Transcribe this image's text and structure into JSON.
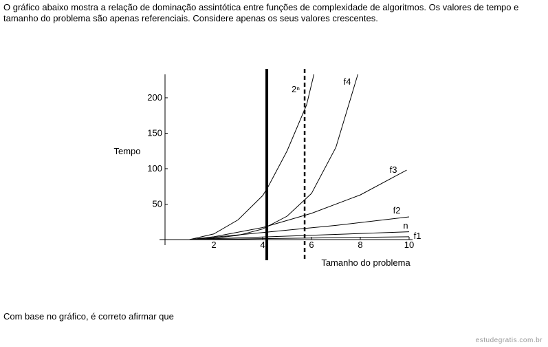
{
  "text": "O gráfico abaixo mostra a relação de dominação assintótica entre funções de complexidade de algoritmos. Os valores de tempo e tamanho do problema são apenas referenciais. Considere apenas os seus valores crescentes.",
  "chart_data": {
    "type": "line",
    "x_label": "Tamanho do problema",
    "y_label": "Tempo",
    "xlim": [
      0,
      10
    ],
    "ylim": [
      0,
      233
    ],
    "xticks": [
      2,
      4,
      6,
      8,
      10
    ],
    "yticks": [
      50,
      100,
      150,
      200
    ],
    "series": [
      {
        "name": "2ⁿ",
        "color": "#000000",
        "x": [
          1,
          2,
          3,
          4,
          4.2,
          5,
          5.8,
          6.1
        ],
        "values": [
          0,
          8,
          28,
          62,
          73,
          125,
          190,
          233
        ]
      },
      {
        "name": "f4",
        "color": "#000000",
        "x": [
          1,
          2,
          3,
          4,
          5,
          6,
          7,
          7.9
        ],
        "values": [
          0,
          2,
          6,
          15,
          33,
          65,
          130,
          233
        ]
      },
      {
        "name": "f3",
        "color": "#000000",
        "x": [
          1,
          2,
          4,
          6,
          8,
          9.9
        ],
        "values": [
          0,
          4,
          17,
          37,
          63,
          98
        ]
      },
      {
        "name": "f2",
        "color": "#000000",
        "x": [
          1,
          4,
          7,
          10
        ],
        "values": [
          0,
          10,
          20,
          32
        ]
      },
      {
        "name": "n",
        "color": "#000000",
        "x": [
          1,
          10
        ],
        "values": [
          0,
          11
        ]
      },
      {
        "name": "f1",
        "color": "#000000",
        "x": [
          1,
          10
        ],
        "values": [
          0,
          4
        ]
      }
    ],
    "reference_lines": [
      {
        "x": 4.17,
        "style": "solid"
      },
      {
        "x": 5.72,
        "style": "dashed"
      }
    ]
  },
  "question": "Com base no gráfico, é correto afirmar que",
  "watermark": "estudegratis.com.br"
}
